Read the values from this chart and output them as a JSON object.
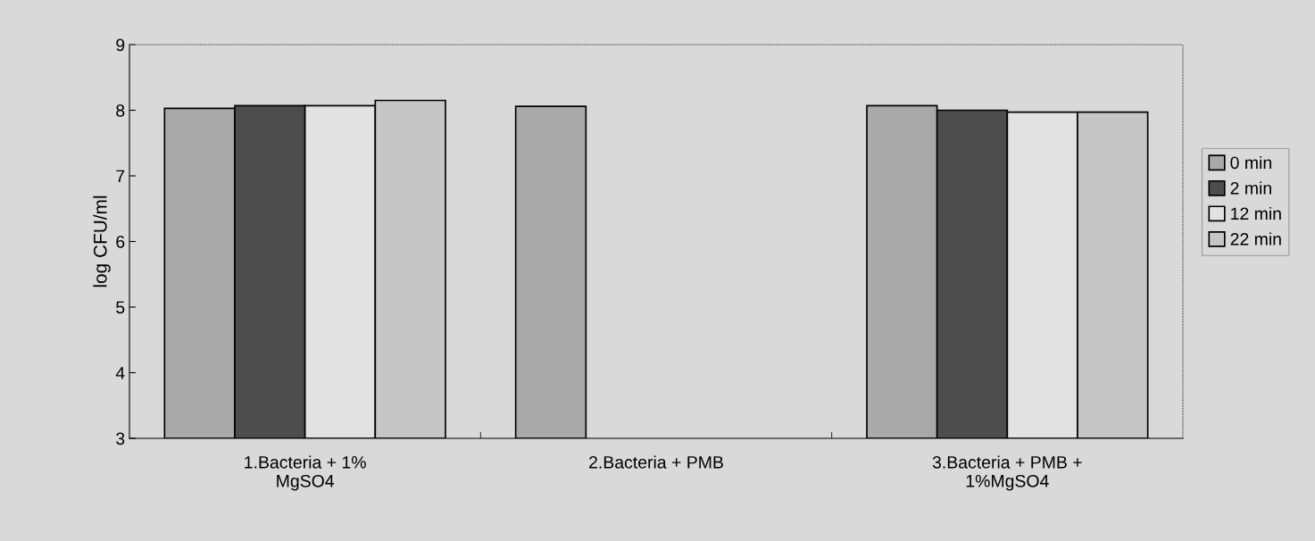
{
  "chart_data": {
    "type": "bar",
    "ylabel": "log CFU/ml",
    "categories": [
      "1.Bacteria + 1%\nMgSO4",
      "2.Bacteria + PMB",
      "3.Bacteria + PMB +\n1%MgSO4"
    ],
    "series": [
      {
        "name": "0 min",
        "color": "#a9a9a9",
        "values": [
          8.03,
          8.06,
          8.07
        ]
      },
      {
        "name": "2 min",
        "color": "#4d4d4d",
        "values": [
          8.07,
          null,
          8.0
        ]
      },
      {
        "name": "12 min",
        "color": "#e2e2e2",
        "values": [
          8.07,
          null,
          7.97
        ]
      },
      {
        "name": "22 min",
        "color": "#c6c6c6",
        "values": [
          8.15,
          null,
          7.97
        ]
      }
    ],
    "ylim": [
      3,
      9
    ],
    "yticks": [
      3,
      4,
      5,
      6,
      7,
      8,
      9
    ],
    "grid": false,
    "legend": "right"
  }
}
